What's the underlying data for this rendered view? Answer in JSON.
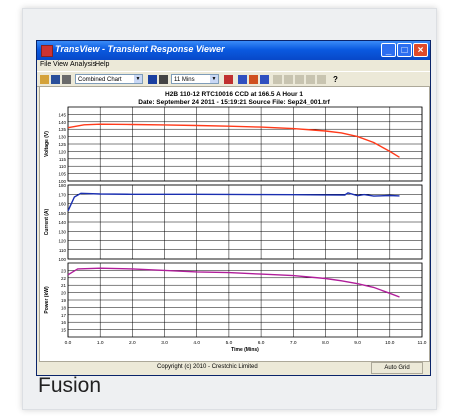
{
  "window": {
    "title": "TransView - Transient Response Viewer",
    "menu": [
      "File",
      "View",
      "Analysis",
      "Help"
    ],
    "chart_type_select": "Combined Chart",
    "time_select": "11 Mins",
    "status_copyright": "Copyright (c) 2010 - Crestchic Limited",
    "status_mode": "Auto Grid"
  },
  "chart_header": {
    "line1": "H2B 110-12 RTC10016    CCD at 166.5 A    Hour 1",
    "line2": "Date: September 24 2011 - 15:19:21    Source File: Sep24_001.trf"
  },
  "caption": "Fusion",
  "chart_data": [
    {
      "type": "line",
      "ylabel": "Voltage (V)",
      "ylim": [
        100,
        150
      ],
      "yticks": [
        100,
        105,
        110,
        115,
        120,
        125,
        130,
        135,
        140,
        145
      ],
      "series": [
        {
          "color": "#ff3a1a",
          "x": [
            0,
            0.5,
            1,
            2,
            3,
            4,
            5,
            6,
            7,
            8,
            8.5,
            9,
            9.5,
            10,
            10.3
          ],
          "y": [
            136,
            138,
            138.4,
            138.2,
            137.9,
            137.5,
            137,
            136.4,
            135.4,
            133.8,
            132.5,
            130,
            126,
            120,
            116
          ]
        }
      ]
    },
    {
      "type": "line",
      "ylabel": "Current (A)",
      "ylim": [
        100,
        180
      ],
      "yticks": [
        100,
        110,
        120,
        130,
        140,
        150,
        160,
        170,
        180
      ],
      "series": [
        {
          "color": "#1a2fb0",
          "x": [
            0,
            0.2,
            0.4,
            1,
            2,
            3,
            4,
            5,
            6,
            7,
            8,
            8.6,
            8.7,
            9,
            9.2,
            9.5,
            10,
            10.3
          ],
          "y": [
            152,
            167,
            171,
            170.3,
            170,
            170,
            170,
            169.8,
            169.6,
            169.5,
            169.3,
            169.2,
            171.5,
            168.4,
            169.6,
            168,
            168.6,
            168.2
          ]
        }
      ]
    },
    {
      "type": "line",
      "ylabel": "Power (kW)",
      "ylim": [
        14,
        24
      ],
      "yticks": [
        15,
        16,
        17,
        18,
        19,
        20,
        21,
        22,
        23
      ],
      "series": [
        {
          "color": "#b01e9a",
          "x": [
            0,
            0.3,
            1,
            2,
            3,
            4,
            5,
            6,
            7,
            8,
            8.5,
            9,
            9.5,
            10,
            10.3
          ],
          "y": [
            22.4,
            23.2,
            23.3,
            23.2,
            23,
            22.8,
            22.7,
            22.5,
            22.3,
            21.9,
            21.6,
            21.2,
            20.7,
            19.9,
            19.4
          ]
        }
      ]
    }
  ],
  "x_axis": {
    "label": "Time (Mins)",
    "ticks": [
      0,
      1,
      2,
      3,
      4,
      5,
      6,
      7,
      8,
      9,
      10,
      11
    ],
    "tick_labels": [
      "0.0",
      "1.0",
      "2.0",
      "3.0",
      "4.0",
      "5.0",
      "6.0",
      "7.0",
      "8.0",
      "9.0",
      "10.0",
      "11.0"
    ]
  }
}
